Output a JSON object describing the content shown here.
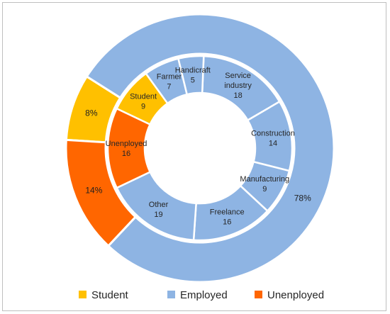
{
  "chart_data": {
    "type": "pie",
    "subtype": "two-level doughnut",
    "title": "",
    "outer_ring": {
      "categories": [
        "Student",
        "Employed",
        "Unenployed"
      ],
      "values": [
        8,
        78,
        14
      ],
      "labels": [
        "8%",
        "78%",
        "14%"
      ],
      "colors": [
        "#FFC000",
        "#8EB4E3",
        "#FF6600"
      ]
    },
    "inner_ring": {
      "segments": [
        {
          "name": "Service industry",
          "lines": [
            "Service",
            "industry"
          ],
          "value": 18,
          "group": "Employed"
        },
        {
          "name": "Construction",
          "lines": [
            "Construction"
          ],
          "value": 14,
          "group": "Employed"
        },
        {
          "name": "Manufacturing",
          "lines": [
            "Manufacturing"
          ],
          "value": 9,
          "group": "Employed"
        },
        {
          "name": "Freelance",
          "lines": [
            "Freelance"
          ],
          "value": 16,
          "group": "Employed"
        },
        {
          "name": "Other",
          "lines": [
            "Other"
          ],
          "value": 19,
          "group": "Employed"
        },
        {
          "name": "Unenployed",
          "lines": [
            "Unenployed"
          ],
          "value": 16,
          "group": "Unenployed"
        },
        {
          "name": "Student",
          "lines": [
            "Student"
          ],
          "value": 9,
          "group": "Student"
        },
        {
          "name": "Farmer",
          "lines": [
            "Farmer"
          ],
          "value": 7,
          "group": "Employed"
        },
        {
          "name": "Handicraft",
          "lines": [
            "Handicraft"
          ],
          "value": 5,
          "group": "Employed"
        }
      ]
    },
    "legend": {
      "position": "bottom",
      "entries": [
        {
          "label": "Student",
          "color": "#FFC000"
        },
        {
          "label": "Employed",
          "color": "#8EB4E3"
        },
        {
          "label": "Unenployed",
          "color": "#FF6600"
        }
      ]
    }
  }
}
